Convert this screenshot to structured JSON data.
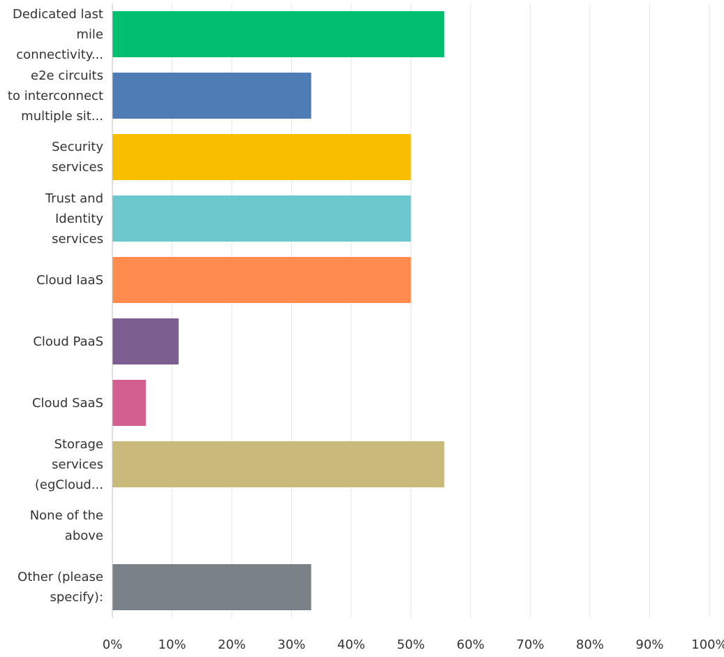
{
  "chart_data": {
    "type": "bar",
    "orientation": "horizontal",
    "categories": [
      [
        "Dedicated last",
        "mile",
        "connectivity..."
      ],
      [
        "e2e circuits",
        "to interconnect",
        "multiple sit..."
      ],
      [
        "Security",
        "services"
      ],
      [
        "Trust and",
        "Identity",
        "services"
      ],
      [
        "Cloud IaaS"
      ],
      [
        "Cloud PaaS"
      ],
      [
        "Cloud SaaS"
      ],
      [
        "Storage",
        "services",
        "(egCloud..."
      ],
      [
        "None of the",
        "above"
      ],
      [
        "Other (please",
        "specify):"
      ]
    ],
    "values": [
      55.6,
      33.3,
      50.0,
      50.0,
      50.0,
      11.1,
      5.6,
      55.6,
      0,
      33.3
    ],
    "colors": [
      "#00bf6f",
      "#507cb6",
      "#f9be00",
      "#6bc8cd",
      "#ff8b4f",
      "#7d5e90",
      "#d25f90",
      "#c9b97b",
      "#a0a0a0",
      "#7a8187"
    ],
    "xlim": [
      0,
      100
    ],
    "xticks": [
      "0%",
      "10%",
      "20%",
      "30%",
      "40%",
      "50%",
      "60%",
      "70%",
      "80%",
      "90%",
      "100%"
    ],
    "grid": true
  }
}
